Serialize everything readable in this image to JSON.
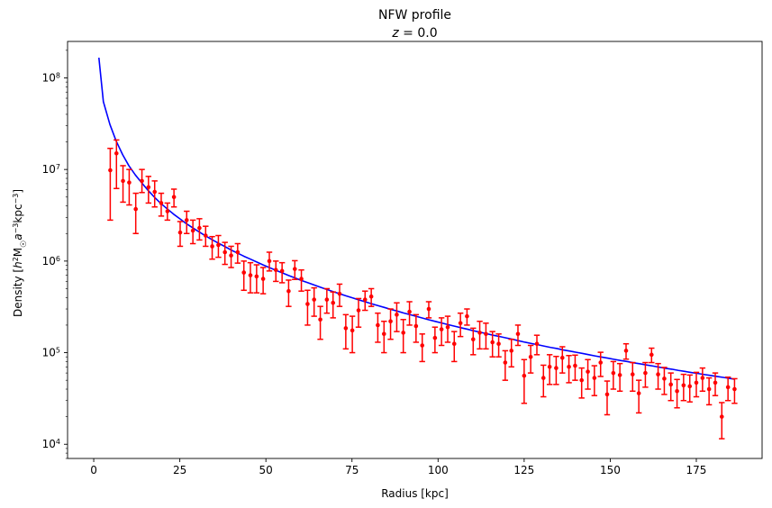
{
  "chart_data": {
    "type": "scatter",
    "title": "NFW profile",
    "subtitle_var": "z",
    "subtitle_eq": " = 0.0",
    "xlabel": "Radius [kpc]",
    "ylabel_prefix": "Density [",
    "ylabel_h": "h",
    "ylabel_h_sup": "2",
    "ylabel_m": "M",
    "ylabel_sun": "☉",
    "ylabel_a": "a",
    "ylabel_a_sup": "−3",
    "ylabel_kpc": "kpc",
    "ylabel_kpc_sup": "−3",
    "ylabel_suffix": "]",
    "xlim": [
      -7.6,
      194.1
    ],
    "ylim": [
      7000,
      250000000
    ],
    "yscale": "log",
    "grid": false,
    "x_ticks": [
      0,
      25,
      50,
      75,
      100,
      125,
      150,
      175
    ],
    "x_tick_labels": [
      "0",
      "25",
      "50",
      "75",
      "100",
      "125",
      "150",
      "175"
    ],
    "y_ticks": [
      10000,
      100000,
      1000000,
      10000000,
      100000000
    ],
    "y_tick_base": "10",
    "y_tick_exps": [
      "4",
      "5",
      "6",
      "7",
      "8"
    ],
    "line_color": "#0000ff",
    "point_color": "#ff0000",
    "model_series": {
      "x": [
        1.5,
        2.8,
        4.7,
        6.5,
        8.4,
        10.2,
        12.1,
        14.0,
        15.8,
        17.7,
        19.5,
        21.4,
        23.2,
        25.1,
        26.9,
        28.8,
        30.7,
        32.5,
        34.4,
        36.2,
        38.1,
        39.9,
        41.8,
        43.6,
        45.5,
        47.4,
        49.2,
        51.1,
        52.9,
        54.8,
        56.6,
        58.5,
        60.3,
        62.2,
        64.1,
        65.9,
        67.8,
        69.6,
        71.5,
        73.3,
        75.2,
        77.0,
        78.9,
        80.7,
        82.6,
        84.5,
        86.3,
        88.2,
        90.0,
        91.9,
        93.7,
        95.6,
        97.4,
        99.3,
        101.2,
        103.0,
        104.9,
        106.7,
        108.6,
        110.4,
        112.3,
        114.1,
        116.0,
        117.9,
        119.7,
        121.6,
        123.4,
        125.3,
        127.1,
        129.0,
        130.8,
        132.7,
        134.5,
        136.4,
        138.3,
        140.1,
        142.0,
        143.8,
        145.7,
        147.5,
        149.4,
        151.2,
        153.1,
        155.0,
        156.8,
        158.7,
        160.5,
        162.4,
        164.2,
        166.1,
        167.9,
        169.8,
        171.6,
        173.5,
        175.4,
        177.2,
        179.1,
        180.9,
        182.8,
        184.6,
        186.0
      ],
      "y": [
        166000000,
        55000000,
        31000000,
        20500000,
        14500000,
        11000000,
        8700000,
        7100000,
        5900000,
        4950000,
        4250000,
        3700000,
        3250000,
        2880000,
        2560000,
        2300000,
        2070000,
        1880000,
        1710000,
        1570000,
        1440000,
        1320000,
        1220000,
        1130000,
        1050000,
        975000,
        908000,
        847000,
        792000,
        742000,
        696000,
        654000,
        615000,
        580000,
        547000,
        517000,
        489000,
        463000,
        439000,
        417000,
        396000,
        377000,
        359000,
        342000,
        326000,
        311000,
        297000,
        284000,
        271000,
        260000,
        249000,
        238000,
        228000,
        219000,
        210000,
        202000,
        194000,
        187000,
        180000,
        173000,
        167000,
        161000,
        155000,
        150000,
        145000,
        140000,
        135000,
        130000,
        126000,
        122000,
        118000,
        114000,
        111000,
        107000,
        104000,
        101000,
        98000,
        95000,
        92000,
        89500,
        87000,
        84500,
        82000,
        80000,
        77500,
        75500,
        73500,
        71500,
        69500,
        67500,
        66000,
        64000,
        62500,
        60800,
        59300,
        57800,
        56400,
        55000,
        53700,
        52400,
        51400
      ]
    },
    "data_series": {
      "x": [
        4.8,
        6.6,
        8.5,
        10.3,
        12.2,
        14.0,
        15.9,
        17.7,
        19.6,
        21.4,
        23.3,
        25.1,
        27.0,
        28.8,
        30.7,
        32.5,
        34.4,
        36.2,
        38.1,
        39.9,
        41.8,
        43.6,
        45.5,
        47.3,
        49.2,
        51.0,
        52.9,
        54.7,
        56.6,
        58.4,
        60.3,
        62.1,
        64.0,
        65.8,
        67.7,
        69.5,
        71.4,
        73.2,
        75.1,
        76.9,
        78.8,
        80.6,
        82.5,
        84.3,
        86.2,
        88.0,
        89.9,
        91.7,
        93.6,
        95.4,
        97.3,
        99.1,
        101.0,
        102.8,
        104.7,
        106.5,
        108.4,
        110.2,
        112.1,
        113.9,
        115.8,
        117.6,
        119.5,
        121.3,
        123.2,
        125.0,
        126.9,
        128.7,
        130.6,
        132.4,
        134.3,
        136.1,
        138.0,
        139.8,
        141.7,
        143.5,
        145.4,
        147.2,
        149.1,
        150.9,
        152.8,
        154.6,
        156.5,
        158.3,
        160.2,
        162.0,
        163.9,
        165.7,
        167.6,
        169.4,
        171.3,
        173.1,
        175.0,
        176.8,
        178.7,
        180.5,
        182.4,
        184.2,
        186.1
      ],
      "y": [
        9800000,
        15000000,
        7500000,
        7200000,
        3700000,
        7500000,
        6400000,
        5700000,
        4300000,
        3500000,
        5000000,
        2050000,
        2800000,
        2150000,
        2300000,
        1900000,
        1450000,
        1500000,
        1250000,
        1150000,
        1250000,
        750000,
        700000,
        680000,
        640000,
        1000000,
        800000,
        780000,
        470000,
        820000,
        640000,
        340000,
        380000,
        230000,
        380000,
        350000,
        440000,
        185000,
        175000,
        290000,
        380000,
        410000,
        200000,
        160000,
        220000,
        260000,
        165000,
        280000,
        195000,
        120000,
        300000,
        145000,
        180000,
        190000,
        125000,
        210000,
        250000,
        140000,
        165000,
        160000,
        130000,
        125000,
        78000,
        105000,
        160000,
        56000,
        90000,
        125000,
        53000,
        70000,
        68000,
        88000,
        70000,
        72000,
        50000,
        62000,
        53000,
        78000,
        35000,
        60000,
        57000,
        105000,
        58000,
        36000,
        60000,
        95000,
        58000,
        52000,
        45000,
        38000,
        44000,
        43000,
        47000,
        53000,
        40000,
        47000,
        20000,
        42000,
        40000
      ],
      "y_low": [
        2800000,
        6200000,
        4400000,
        4100000,
        2000000,
        5600000,
        4300000,
        3900000,
        3100000,
        2800000,
        3900000,
        1450000,
        2000000,
        1550000,
        1700000,
        1450000,
        1050000,
        1100000,
        920000,
        850000,
        950000,
        480000,
        450000,
        450000,
        440000,
        780000,
        600000,
        580000,
        320000,
        630000,
        470000,
        200000,
        250000,
        140000,
        270000,
        240000,
        320000,
        110000,
        100000,
        190000,
        290000,
        320000,
        130000,
        100000,
        140000,
        170000,
        100000,
        200000,
        130000,
        80000,
        240000,
        100000,
        120000,
        130000,
        80000,
        150000,
        200000,
        95000,
        110000,
        110000,
        90000,
        90000,
        50000,
        70000,
        120000,
        28000,
        60000,
        95000,
        33000,
        45000,
        45000,
        60000,
        47000,
        50000,
        32000,
        40000,
        34000,
        55000,
        21000,
        40000,
        38000,
        85000,
        38000,
        22000,
        42000,
        78000,
        40000,
        35000,
        30000,
        25000,
        30000,
        29000,
        33000,
        38000,
        27000,
        34000,
        11500,
        30000,
        28000
      ],
      "y_high": [
        17000000,
        21000000,
        11000000,
        10000000,
        5500000,
        10000000,
        8400000,
        7500000,
        5500000,
        4300000,
        6100000,
        2700000,
        3500000,
        2800000,
        2900000,
        2400000,
        1850000,
        1900000,
        1600000,
        1450000,
        1550000,
        1000000,
        960000,
        910000,
        850000,
        1250000,
        1000000,
        960000,
        620000,
        1010000,
        800000,
        480000,
        510000,
        320000,
        500000,
        460000,
        560000,
        260000,
        250000,
        390000,
        470000,
        500000,
        270000,
        220000,
        300000,
        350000,
        230000,
        360000,
        260000,
        160000,
        360000,
        190000,
        240000,
        250000,
        170000,
        270000,
        300000,
        185000,
        220000,
        210000,
        170000,
        160000,
        105000,
        140000,
        200000,
        84000,
        120000,
        155000,
        73000,
        95000,
        91000,
        116000,
        93000,
        94000,
        68000,
        84000,
        72000,
        101000,
        49000,
        80000,
        76000,
        125000,
        78000,
        50000,
        78000,
        112000,
        76000,
        69000,
        60000,
        51000,
        58000,
        57000,
        61000,
        68000,
        53000,
        60000,
        28500,
        54000,
        52000
      ]
    }
  }
}
